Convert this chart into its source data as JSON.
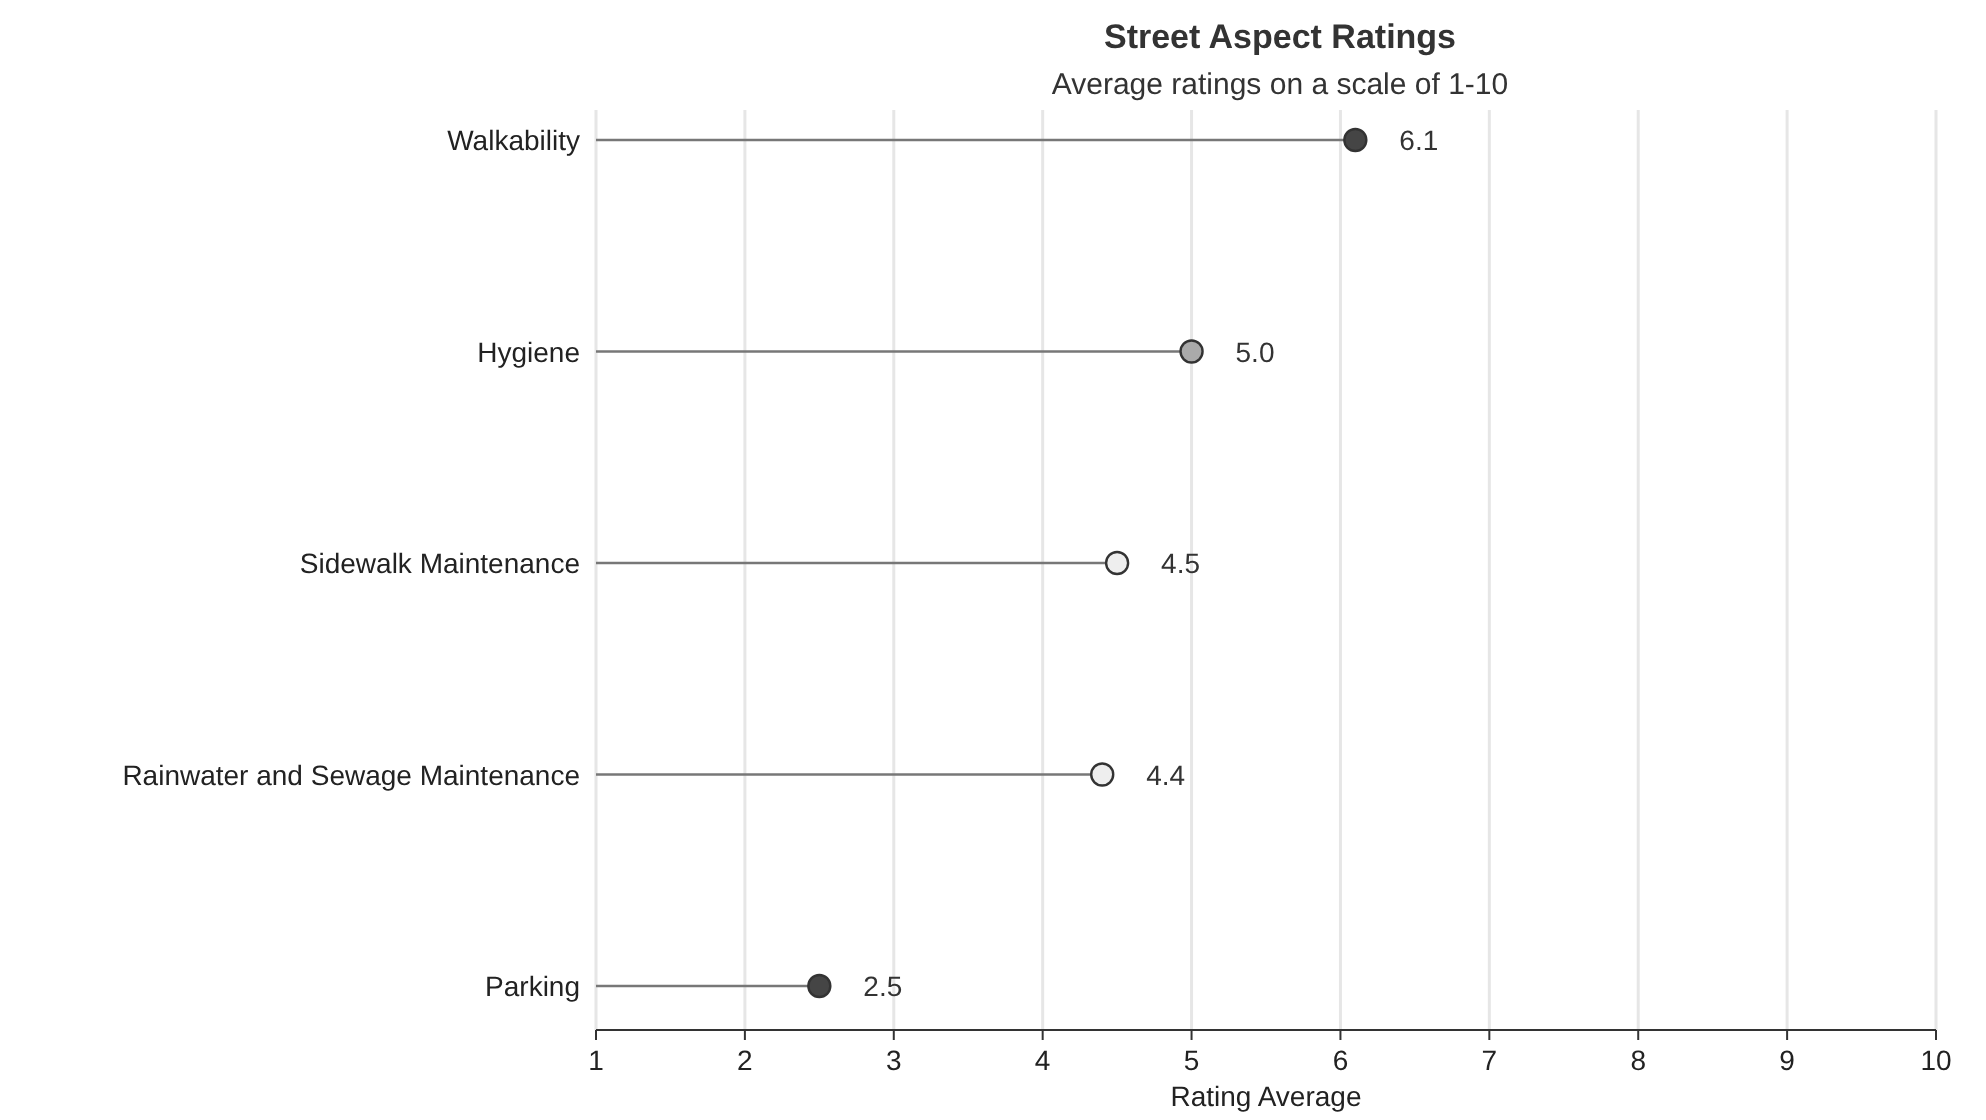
{
  "chart_data": {
    "type": "lollipop",
    "orientation": "horizontal",
    "title": "Street Aspect Ratings",
    "subtitle": "Average ratings on a scale of 1-10",
    "xlabel": "Rating Average",
    "categories": [
      "Walkability",
      "Hygiene",
      "Sidewalk Maintenance",
      "Rainwater and Sewage Maintenance",
      "Parking"
    ],
    "values": [
      6.1,
      5.0,
      4.5,
      4.4,
      2.5
    ],
    "value_labels": [
      "6.1",
      "5.0",
      "4.5",
      "4.4",
      "2.5"
    ],
    "colors": [
      "#454545",
      "#aaaaaa",
      "#eeeeee",
      "#eeeeee",
      "#454545"
    ],
    "xlim": [
      1,
      10
    ],
    "xticks": [
      1,
      2,
      3,
      4,
      5,
      6,
      7,
      8,
      9,
      10
    ],
    "grid": "x",
    "marker": "circle"
  }
}
